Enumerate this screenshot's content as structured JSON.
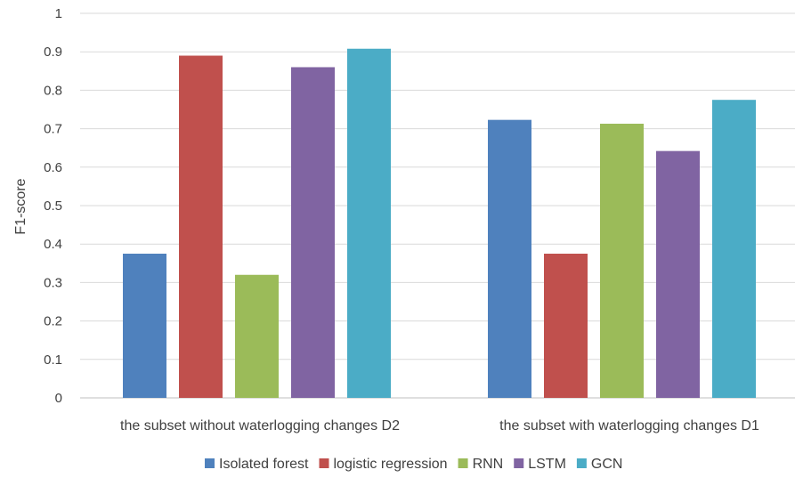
{
  "chart_data": {
    "type": "bar",
    "ylabel": "F1-score",
    "xlabel": "",
    "ylim": [
      0,
      1
    ],
    "yticks": [
      "0",
      "0.1",
      "0.2",
      "0.3",
      "0.4",
      "0.5",
      "0.6",
      "0.7",
      "0.8",
      "0.9",
      "1"
    ],
    "grid": true,
    "legend_position": "bottom",
    "categories": [
      "the subset without waterlogging changes D2",
      "the subset with waterlogging changes D1"
    ],
    "series": [
      {
        "name": "Isolated forest",
        "color": "#4f81bd",
        "values": [
          0.375,
          0.723
        ]
      },
      {
        "name": "logistic regression",
        "color": "#c0504d",
        "values": [
          0.89,
          0.375
        ]
      },
      {
        "name": "RNN",
        "color": "#9bbb59",
        "values": [
          0.32,
          0.713
        ]
      },
      {
        "name": "LSTM",
        "color": "#8064a2",
        "values": [
          0.86,
          0.642
        ]
      },
      {
        "name": "GCN",
        "color": "#4bacc6",
        "values": [
          0.908,
          0.775
        ]
      }
    ]
  }
}
